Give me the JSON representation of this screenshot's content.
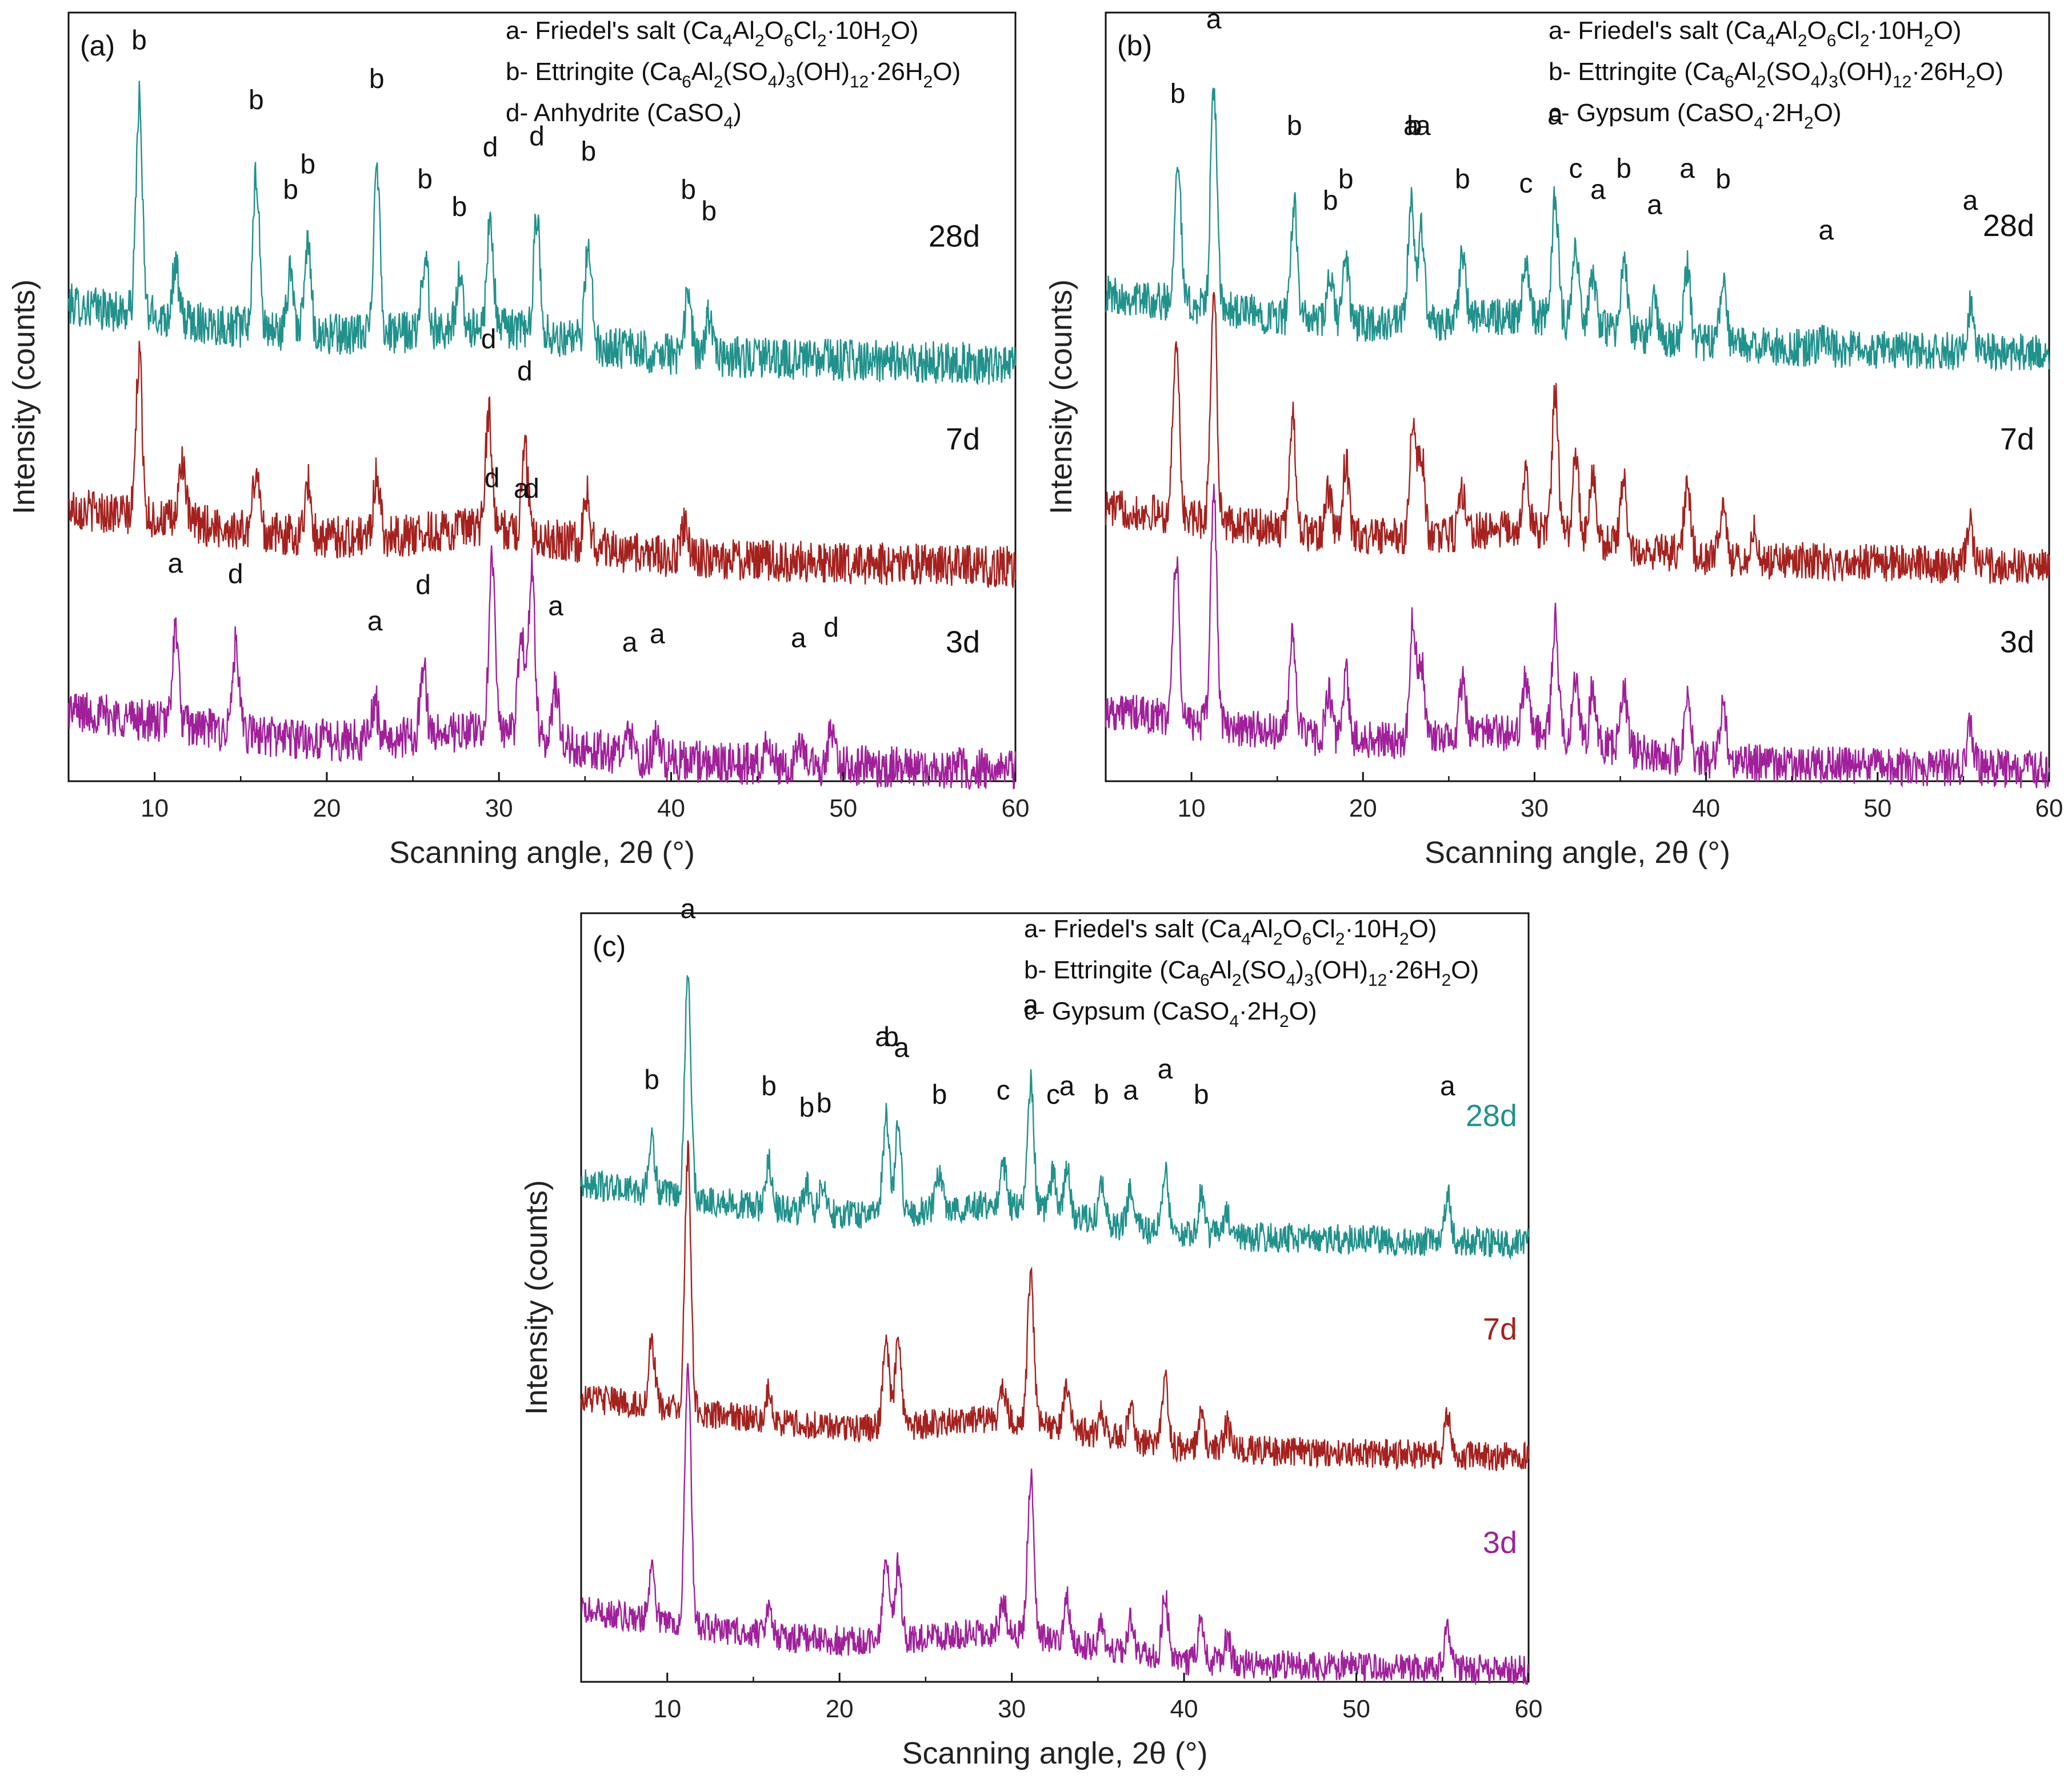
{
  "chart_data": [
    {
      "type": "line",
      "panel_label": "(a)",
      "xlabel": "Scanning angle, 2θ (°)",
      "ylabel": "Intensity (counts)",
      "xlim": [
        5,
        60
      ],
      "xticks": [
        10,
        20,
        30,
        40,
        50,
        60
      ],
      "grid": false,
      "legend_placement": "top-right",
      "legend": [
        {
          "key": "a",
          "text": "Friedel's salt (Ca4Al2O6Cl2·10H2O)"
        },
        {
          "key": "b",
          "text": "Ettringite (Ca6Al2(SO4)3(OH)12·26H2O)"
        },
        {
          "key": "d",
          "text": "Anhydrite (CaSO4)"
        }
      ],
      "series": [
        {
          "name": "28d",
          "color": "#21918c",
          "offset": 2.0,
          "noise": 0.1,
          "peaks": [
            [
              9.1,
              1.0
            ],
            [
              11.2,
              0.25
            ],
            [
              15.9,
              0.72
            ],
            [
              17.9,
              0.3
            ],
            [
              18.9,
              0.42
            ],
            [
              22.9,
              0.82
            ],
            [
              25.7,
              0.35
            ],
            [
              27.7,
              0.22
            ],
            [
              29.5,
              0.5
            ],
            [
              32.2,
              0.55
            ],
            [
              35.2,
              0.48
            ],
            [
              41.0,
              0.3
            ],
            [
              42.2,
              0.2
            ]
          ],
          "annotations": [
            {
              "x": 9.1,
              "label": "b"
            },
            {
              "x": 15.9,
              "label": "b"
            },
            {
              "x": 17.9,
              "label": "b"
            },
            {
              "x": 18.9,
              "label": "b"
            },
            {
              "x": 22.9,
              "label": "b"
            },
            {
              "x": 25.7,
              "label": "b"
            },
            {
              "x": 27.7,
              "label": "b"
            },
            {
              "x": 29.5,
              "label": "d"
            },
            {
              "x": 32.2,
              "label": "d"
            },
            {
              "x": 35.2,
              "label": "b"
            },
            {
              "x": 41.0,
              "label": "b"
            },
            {
              "x": 42.2,
              "label": "b"
            }
          ]
        },
        {
          "name": "7d",
          "color": "#a5211e",
          "offset": 1.05,
          "noise": 0.1,
          "peaks": [
            [
              9.1,
              0.75
            ],
            [
              11.6,
              0.3
            ],
            [
              15.9,
              0.3
            ],
            [
              18.9,
              0.25
            ],
            [
              22.9,
              0.3
            ],
            [
              29.4,
              0.55
            ],
            [
              31.5,
              0.4
            ],
            [
              35.1,
              0.25
            ],
            [
              40.8,
              0.15
            ]
          ],
          "annotations": [
            {
              "x": 29.4,
              "label": "d"
            },
            {
              "x": 31.5,
              "label": "d"
            }
          ]
        },
        {
          "name": "3d",
          "color": "#a0209a",
          "offset": 0.1,
          "noise": 0.1,
          "peaks": [
            [
              11.2,
              0.45
            ],
            [
              14.7,
              0.4
            ],
            [
              22.8,
              0.18
            ],
            [
              25.6,
              0.35
            ],
            [
              29.6,
              0.85
            ],
            [
              31.3,
              0.5
            ],
            [
              31.9,
              0.8
            ],
            [
              33.3,
              0.25
            ],
            [
              37.6,
              0.08
            ],
            [
              39.2,
              0.12
            ],
            [
              45.6,
              0.12
            ],
            [
              47.4,
              0.1
            ],
            [
              49.3,
              0.15
            ]
          ],
          "annotations": [
            {
              "x": 11.2,
              "label": "a"
            },
            {
              "x": 14.7,
              "label": "d"
            },
            {
              "x": 22.8,
              "label": "a"
            },
            {
              "x": 25.6,
              "label": "d"
            },
            {
              "x": 29.6,
              "label": "d"
            },
            {
              "x": 31.3,
              "label": "a"
            },
            {
              "x": 31.9,
              "label": "d"
            },
            {
              "x": 33.3,
              "label": "a"
            },
            {
              "x": 37.6,
              "label": "a"
            },
            {
              "x": 39.2,
              "label": "a"
            },
            {
              "x": 47.4,
              "label": "a"
            },
            {
              "x": 49.3,
              "label": "d"
            }
          ]
        }
      ]
    },
    {
      "type": "line",
      "panel_label": "(b)",
      "xlabel": "Scanning angle, 2θ (°)",
      "ylabel": "Intensity (counts)",
      "xlim": [
        5,
        60
      ],
      "xticks": [
        10,
        20,
        30,
        40,
        50,
        60
      ],
      "grid": false,
      "legend_placement": "top-right",
      "legend": [
        {
          "key": "a",
          "text": "Friedel's salt (Ca4Al2O6Cl2·10H2O)"
        },
        {
          "key": "b",
          "text": "Ettringite (Ca6Al2(SO4)3(OH)12·26H2O)"
        },
        {
          "key": "c",
          "text": "Gypsum (CaSO4·2H2O)"
        }
      ],
      "series": [
        {
          "name": "28d",
          "color": "#21918c",
          "offset": 2.05,
          "noise": 0.09,
          "peaks": [
            [
              9.2,
              0.7
            ],
            [
              11.3,
              1.05
            ],
            [
              16.0,
              0.55
            ],
            [
              18.1,
              0.2
            ],
            [
              19.0,
              0.3
            ],
            [
              22.8,
              0.55
            ],
            [
              23.4,
              0.45
            ],
            [
              25.8,
              0.3
            ],
            [
              29.5,
              0.28
            ],
            [
              31.2,
              0.6
            ],
            [
              32.4,
              0.35
            ],
            [
              33.4,
              0.25
            ],
            [
              35.2,
              0.35
            ],
            [
              37.0,
              0.18
            ],
            [
              38.9,
              0.35
            ],
            [
              41.0,
              0.3
            ],
            [
              47.0,
              0.06
            ],
            [
              55.4,
              0.2
            ]
          ],
          "annotations": [
            {
              "x": 9.2,
              "label": "b"
            },
            {
              "x": 11.3,
              "label": "a"
            },
            {
              "x": 16.0,
              "label": "b"
            },
            {
              "x": 18.1,
              "label": "b"
            },
            {
              "x": 19.0,
              "label": "b"
            },
            {
              "x": 22.8,
              "label": "a"
            },
            {
              "x": 23.0,
              "label": "b"
            },
            {
              "x": 23.5,
              "label": "a"
            },
            {
              "x": 25.8,
              "label": "b"
            },
            {
              "x": 29.5,
              "label": "c"
            },
            {
              "x": 31.2,
              "label": "a"
            },
            {
              "x": 32.4,
              "label": "c"
            },
            {
              "x": 33.7,
              "label": "a"
            },
            {
              "x": 35.2,
              "label": "b"
            },
            {
              "x": 37.0,
              "label": "a"
            },
            {
              "x": 38.9,
              "label": "a"
            },
            {
              "x": 41.0,
              "label": "b"
            },
            {
              "x": 47.0,
              "label": "a"
            },
            {
              "x": 55.4,
              "label": "a"
            }
          ]
        },
        {
          "name": "7d",
          "color": "#a5211e",
          "offset": 1.05,
          "noise": 0.09,
          "peaks": [
            [
              9.1,
              0.85
            ],
            [
              11.3,
              1.1
            ],
            [
              15.9,
              0.55
            ],
            [
              18.0,
              0.2
            ],
            [
              19.0,
              0.35
            ],
            [
              22.9,
              0.5
            ],
            [
              23.4,
              0.4
            ],
            [
              25.8,
              0.2
            ],
            [
              29.5,
              0.25
            ],
            [
              31.2,
              0.65
            ],
            [
              32.4,
              0.35
            ],
            [
              33.4,
              0.3
            ],
            [
              35.2,
              0.3
            ],
            [
              38.9,
              0.35
            ],
            [
              41.0,
              0.3
            ],
            [
              42.8,
              0.15
            ],
            [
              55.4,
              0.18
            ]
          ],
          "annotations": []
        },
        {
          "name": "3d",
          "color": "#a0209a",
          "offset": 0.1,
          "noise": 0.09,
          "peaks": [
            [
              9.1,
              0.75
            ],
            [
              11.3,
              1.1
            ],
            [
              15.9,
              0.5
            ],
            [
              18.0,
              0.2
            ],
            [
              19.0,
              0.3
            ],
            [
              22.9,
              0.55
            ],
            [
              23.4,
              0.35
            ],
            [
              25.8,
              0.25
            ],
            [
              29.5,
              0.25
            ],
            [
              31.2,
              0.55
            ],
            [
              32.4,
              0.3
            ],
            [
              33.4,
              0.25
            ],
            [
              35.2,
              0.3
            ],
            [
              38.9,
              0.3
            ],
            [
              41.0,
              0.28
            ],
            [
              55.4,
              0.2
            ]
          ],
          "annotations": []
        }
      ]
    },
    {
      "type": "line",
      "panel_label": "(c)",
      "xlabel": "Scanning angle, 2θ (°)",
      "ylabel": "Intensity (counts)",
      "xlim": [
        5,
        60
      ],
      "xticks": [
        10,
        20,
        30,
        40,
        50,
        60
      ],
      "grid": false,
      "legend_placement": "top-right",
      "legend": [
        {
          "key": "a",
          "text": "Friedel's salt (Ca4Al2O6Cl2·10H2O)"
        },
        {
          "key": "b",
          "text": "Ettringite (Ca6Al2(SO4)3(OH)12·26H2O)"
        },
        {
          "key": "c",
          "text": "Gypsum (CaSO4·2H2O)"
        }
      ],
      "series": [
        {
          "name": "28d",
          "color": "#21918c",
          "offset": 2.1,
          "noise": 0.07,
          "peaks": [
            [
              9.1,
              0.25
            ],
            [
              11.2,
              1.05
            ],
            [
              15.9,
              0.22
            ],
            [
              18.1,
              0.12
            ],
            [
              19.0,
              0.14
            ],
            [
              22.7,
              0.45
            ],
            [
              23.4,
              0.4
            ],
            [
              25.8,
              0.18
            ],
            [
              29.5,
              0.2
            ],
            [
              31.1,
              0.6
            ],
            [
              32.4,
              0.18
            ],
            [
              33.2,
              0.22
            ],
            [
              35.2,
              0.18
            ],
            [
              36.9,
              0.2
            ],
            [
              38.9,
              0.3
            ],
            [
              41.0,
              0.18
            ],
            [
              42.5,
              0.1
            ],
            [
              55.3,
              0.22
            ]
          ],
          "annotations": [
            {
              "x": 9.1,
              "label": "b"
            },
            {
              "x": 11.2,
              "label": "a"
            },
            {
              "x": 15.9,
              "label": "b"
            },
            {
              "x": 18.1,
              "label": "b"
            },
            {
              "x": 19.1,
              "label": "b"
            },
            {
              "x": 22.5,
              "label": "a"
            },
            {
              "x": 23.0,
              "label": "b"
            },
            {
              "x": 23.6,
              "label": "a"
            },
            {
              "x": 25.8,
              "label": "b"
            },
            {
              "x": 29.5,
              "label": "c"
            },
            {
              "x": 31.1,
              "label": "a"
            },
            {
              "x": 32.4,
              "label": "c"
            },
            {
              "x": 33.2,
              "label": "a"
            },
            {
              "x": 35.2,
              "label": "b"
            },
            {
              "x": 36.9,
              "label": "a"
            },
            {
              "x": 38.9,
              "label": "a"
            },
            {
              "x": 41.0,
              "label": "b"
            },
            {
              "x": 55.3,
              "label": "a"
            }
          ]
        },
        {
          "name": "7d",
          "color": "#a5211e",
          "offset": 1.1,
          "noise": 0.07,
          "peaks": [
            [
              9.1,
              0.3
            ],
            [
              11.2,
              1.2
            ],
            [
              15.9,
              0.15
            ],
            [
              22.7,
              0.4
            ],
            [
              23.4,
              0.38
            ],
            [
              29.5,
              0.15
            ],
            [
              31.1,
              0.7
            ],
            [
              33.2,
              0.2
            ],
            [
              35.2,
              0.12
            ],
            [
              36.9,
              0.15
            ],
            [
              38.9,
              0.3
            ],
            [
              41.0,
              0.18
            ],
            [
              42.5,
              0.12
            ],
            [
              55.3,
              0.18
            ]
          ],
          "annotations": []
        },
        {
          "name": "3d",
          "color": "#a0209a",
          "offset": 0.1,
          "noise": 0.07,
          "peaks": [
            [
              9.1,
              0.25
            ],
            [
              11.2,
              1.2
            ],
            [
              15.9,
              0.15
            ],
            [
              22.7,
              0.38
            ],
            [
              23.4,
              0.35
            ],
            [
              29.5,
              0.15
            ],
            [
              31.1,
              0.75
            ],
            [
              33.2,
              0.2
            ],
            [
              35.2,
              0.12
            ],
            [
              36.9,
              0.15
            ],
            [
              38.9,
              0.3
            ],
            [
              41.0,
              0.2
            ],
            [
              42.5,
              0.12
            ],
            [
              55.3,
              0.18
            ]
          ],
          "annotations": []
        }
      ]
    }
  ]
}
